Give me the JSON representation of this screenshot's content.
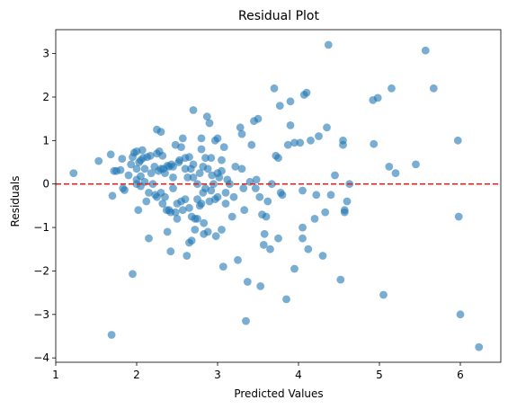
{
  "chart_data": {
    "type": "scatter",
    "title": "Residual Plot",
    "xlabel": "Predicted Values",
    "ylabel": "Residuals",
    "xlim": [
      1.0,
      6.5
    ],
    "ylim": [
      -4.1,
      3.55
    ],
    "xticks": [
      1,
      2,
      3,
      4,
      5,
      6
    ],
    "yticks": [
      -4,
      -3,
      -2,
      -1,
      0,
      1,
      2,
      3
    ],
    "grid": false,
    "point_color": "#1f77b4",
    "point_alpha": 0.6,
    "reference_line": {
      "y": 0,
      "color": "#d62728",
      "style": "dashed"
    },
    "points": [
      [
        1.22,
        0.25
      ],
      [
        1.53,
        0.53
      ],
      [
        1.68,
        0.68
      ],
      [
        1.7,
        -0.27
      ],
      [
        1.72,
        0.3
      ],
      [
        1.75,
        0.3
      ],
      [
        1.8,
        0.32
      ],
      [
        1.82,
        0.58
      ],
      [
        1.83,
        -0.1
      ],
      [
        1.85,
        -0.14
      ],
      [
        1.9,
        0.2
      ],
      [
        1.93,
        0.45
      ],
      [
        1.95,
        0.62
      ],
      [
        1.95,
        -2.07
      ],
      [
        1.97,
        0.72
      ],
      [
        2.0,
        0.75
      ],
      [
        2.0,
        0.35
      ],
      [
        2.0,
        0.1
      ],
      [
        2.0,
        0.0
      ],
      [
        2.02,
        -0.6
      ],
      [
        2.03,
        0.5
      ],
      [
        2.05,
        0.55
      ],
      [
        2.05,
        0.18
      ],
      [
        2.05,
        -0.05
      ],
      [
        2.07,
        0.78
      ],
      [
        2.08,
        0.6
      ],
      [
        2.1,
        0.05
      ],
      [
        2.1,
        0.35
      ],
      [
        2.12,
        -0.4
      ],
      [
        2.13,
        0.62
      ],
      [
        2.15,
        -0.2
      ],
      [
        2.15,
        -1.25
      ],
      [
        2.17,
        0.65
      ],
      [
        2.18,
        0.25
      ],
      [
        2.2,
        0.0
      ],
      [
        2.22,
        0.4
      ],
      [
        2.23,
        -0.25
      ],
      [
        2.25,
        1.25
      ],
      [
        2.25,
        0.7
      ],
      [
        2.25,
        -0.3
      ],
      [
        2.27,
        0.3
      ],
      [
        2.28,
        0.75
      ],
      [
        2.3,
        1.2
      ],
      [
        2.3,
        0.35
      ],
      [
        2.3,
        -0.2
      ],
      [
        2.32,
        0.65
      ],
      [
        2.32,
        -0.45
      ],
      [
        2.33,
        0.35
      ],
      [
        2.35,
        -0.3
      ],
      [
        2.35,
        0.25
      ],
      [
        2.37,
        -0.6
      ],
      [
        2.38,
        -1.1
      ],
      [
        2.38,
        0.42
      ],
      [
        2.4,
        0.4
      ],
      [
        2.4,
        -0.6
      ],
      [
        2.42,
        -0.65
      ],
      [
        2.42,
        -1.55
      ],
      [
        2.43,
        0.45
      ],
      [
        2.45,
        0.4
      ],
      [
        2.45,
        0.15
      ],
      [
        2.45,
        -0.1
      ],
      [
        2.48,
        0.9
      ],
      [
        2.48,
        -0.65
      ],
      [
        2.5,
        -0.45
      ],
      [
        2.5,
        -0.8
      ],
      [
        2.52,
        0.5
      ],
      [
        2.53,
        0.55
      ],
      [
        2.55,
        0.85
      ],
      [
        2.55,
        -0.4
      ],
      [
        2.57,
        1.05
      ],
      [
        2.57,
        -0.6
      ],
      [
        2.6,
        0.35
      ],
      [
        2.6,
        0.6
      ],
      [
        2.6,
        -0.35
      ],
      [
        2.62,
        -1.65
      ],
      [
        2.63,
        0.15
      ],
      [
        2.65,
        0.62
      ],
      [
        2.65,
        -0.55
      ],
      [
        2.65,
        -1.35
      ],
      [
        2.67,
        0.35
      ],
      [
        2.68,
        -0.75
      ],
      [
        2.68,
        -1.3
      ],
      [
        2.7,
        1.7
      ],
      [
        2.7,
        0.45
      ],
      [
        2.7,
        0.15
      ],
      [
        2.72,
        -0.8
      ],
      [
        2.72,
        -1.05
      ],
      [
        2.75,
        0.0
      ],
      [
        2.75,
        -0.35
      ],
      [
        2.75,
        -0.8
      ],
      [
        2.78,
        0.25
      ],
      [
        2.78,
        -0.5
      ],
      [
        2.8,
        0.8
      ],
      [
        2.8,
        1.05
      ],
      [
        2.8,
        -0.45
      ],
      [
        2.82,
        0.4
      ],
      [
        2.82,
        -0.2
      ],
      [
        2.83,
        -1.15
      ],
      [
        2.83,
        -0.9
      ],
      [
        2.85,
        0.6
      ],
      [
        2.85,
        -0.1
      ],
      [
        2.87,
        1.55
      ],
      [
        2.88,
        0.35
      ],
      [
        2.88,
        -1.1
      ],
      [
        2.9,
        1.4
      ],
      [
        2.9,
        -0.4
      ],
      [
        2.92,
        0.6
      ],
      [
        2.92,
        -0.15
      ],
      [
        2.93,
        0.2
      ],
      [
        2.95,
        0.0
      ],
      [
        2.97,
        1.0
      ],
      [
        2.97,
        -0.35
      ],
      [
        2.98,
        -1.2
      ],
      [
        3.0,
        1.05
      ],
      [
        3.0,
        0.25
      ],
      [
        3.0,
        -0.3
      ],
      [
        3.02,
        0.15
      ],
      [
        3.05,
        0.55
      ],
      [
        3.05,
        0.3
      ],
      [
        3.05,
        -1.05
      ],
      [
        3.07,
        -1.9
      ],
      [
        3.08,
        0.85
      ],
      [
        3.1,
        -0.2
      ],
      [
        3.1,
        -0.45
      ],
      [
        3.12,
        0.1
      ],
      [
        3.15,
        0.0
      ],
      [
        3.18,
        -0.75
      ],
      [
        3.2,
        -0.3
      ],
      [
        3.22,
        0.4
      ],
      [
        3.25,
        -1.75
      ],
      [
        3.28,
        1.3
      ],
      [
        3.3,
        0.35
      ],
      [
        3.3,
        1.15
      ],
      [
        3.32,
        -0.1
      ],
      [
        3.33,
        -0.6
      ],
      [
        3.35,
        -3.15
      ],
      [
        3.37,
        -2.25
      ],
      [
        3.4,
        0.05
      ],
      [
        3.42,
        0.9
      ],
      [
        3.45,
        1.45
      ],
      [
        3.47,
        -0.1
      ],
      [
        3.48,
        0.1
      ],
      [
        3.5,
        1.5
      ],
      [
        3.52,
        -0.3
      ],
      [
        3.53,
        -2.35
      ],
      [
        3.55,
        -0.7
      ],
      [
        3.57,
        -1.4
      ],
      [
        3.58,
        -1.15
      ],
      [
        3.6,
        -0.75
      ],
      [
        3.62,
        -0.4
      ],
      [
        3.65,
        -1.5
      ],
      [
        3.67,
        0.0
      ],
      [
        3.7,
        2.2
      ],
      [
        3.72,
        0.65
      ],
      [
        3.75,
        0.6
      ],
      [
        3.75,
        -1.25
      ],
      [
        3.77,
        1.8
      ],
      [
        3.78,
        -0.2
      ],
      [
        3.8,
        -0.25
      ],
      [
        3.85,
        -2.65
      ],
      [
        3.87,
        0.9
      ],
      [
        3.9,
        1.35
      ],
      [
        3.9,
        1.9
      ],
      [
        3.95,
        -1.95
      ],
      [
        3.95,
        0.95
      ],
      [
        4.02,
        0.95
      ],
      [
        4.05,
        -0.15
      ],
      [
        4.05,
        -1.25
      ],
      [
        4.05,
        -1.0
      ],
      [
        4.07,
        2.05
      ],
      [
        4.1,
        2.1
      ],
      [
        4.12,
        -1.5
      ],
      [
        4.15,
        1.0
      ],
      [
        4.2,
        -0.8
      ],
      [
        4.22,
        -0.25
      ],
      [
        4.25,
        1.1
      ],
      [
        4.3,
        -1.65
      ],
      [
        4.33,
        -0.65
      ],
      [
        4.35,
        1.3
      ],
      [
        4.37,
        3.2
      ],
      [
        4.4,
        -0.25
      ],
      [
        4.45,
        0.2
      ],
      [
        4.52,
        -2.2
      ],
      [
        4.55,
        1.0
      ],
      [
        4.55,
        0.9
      ],
      [
        4.57,
        -0.6
      ],
      [
        4.57,
        -0.65
      ],
      [
        4.6,
        -0.4
      ],
      [
        4.63,
        0.0
      ],
      [
        4.92,
        1.93
      ],
      [
        4.93,
        0.92
      ],
      [
        4.98,
        1.98
      ],
      [
        5.05,
        -2.55
      ],
      [
        5.12,
        0.4
      ],
      [
        5.15,
        2.2
      ],
      [
        5.2,
        0.25
      ],
      [
        5.45,
        0.45
      ],
      [
        5.57,
        3.07
      ],
      [
        5.67,
        2.2
      ],
      [
        5.97,
        1.0
      ],
      [
        5.98,
        -0.75
      ],
      [
        6.0,
        -3.0
      ],
      [
        6.23,
        -3.75
      ],
      [
        1.69,
        -3.47
      ]
    ]
  }
}
